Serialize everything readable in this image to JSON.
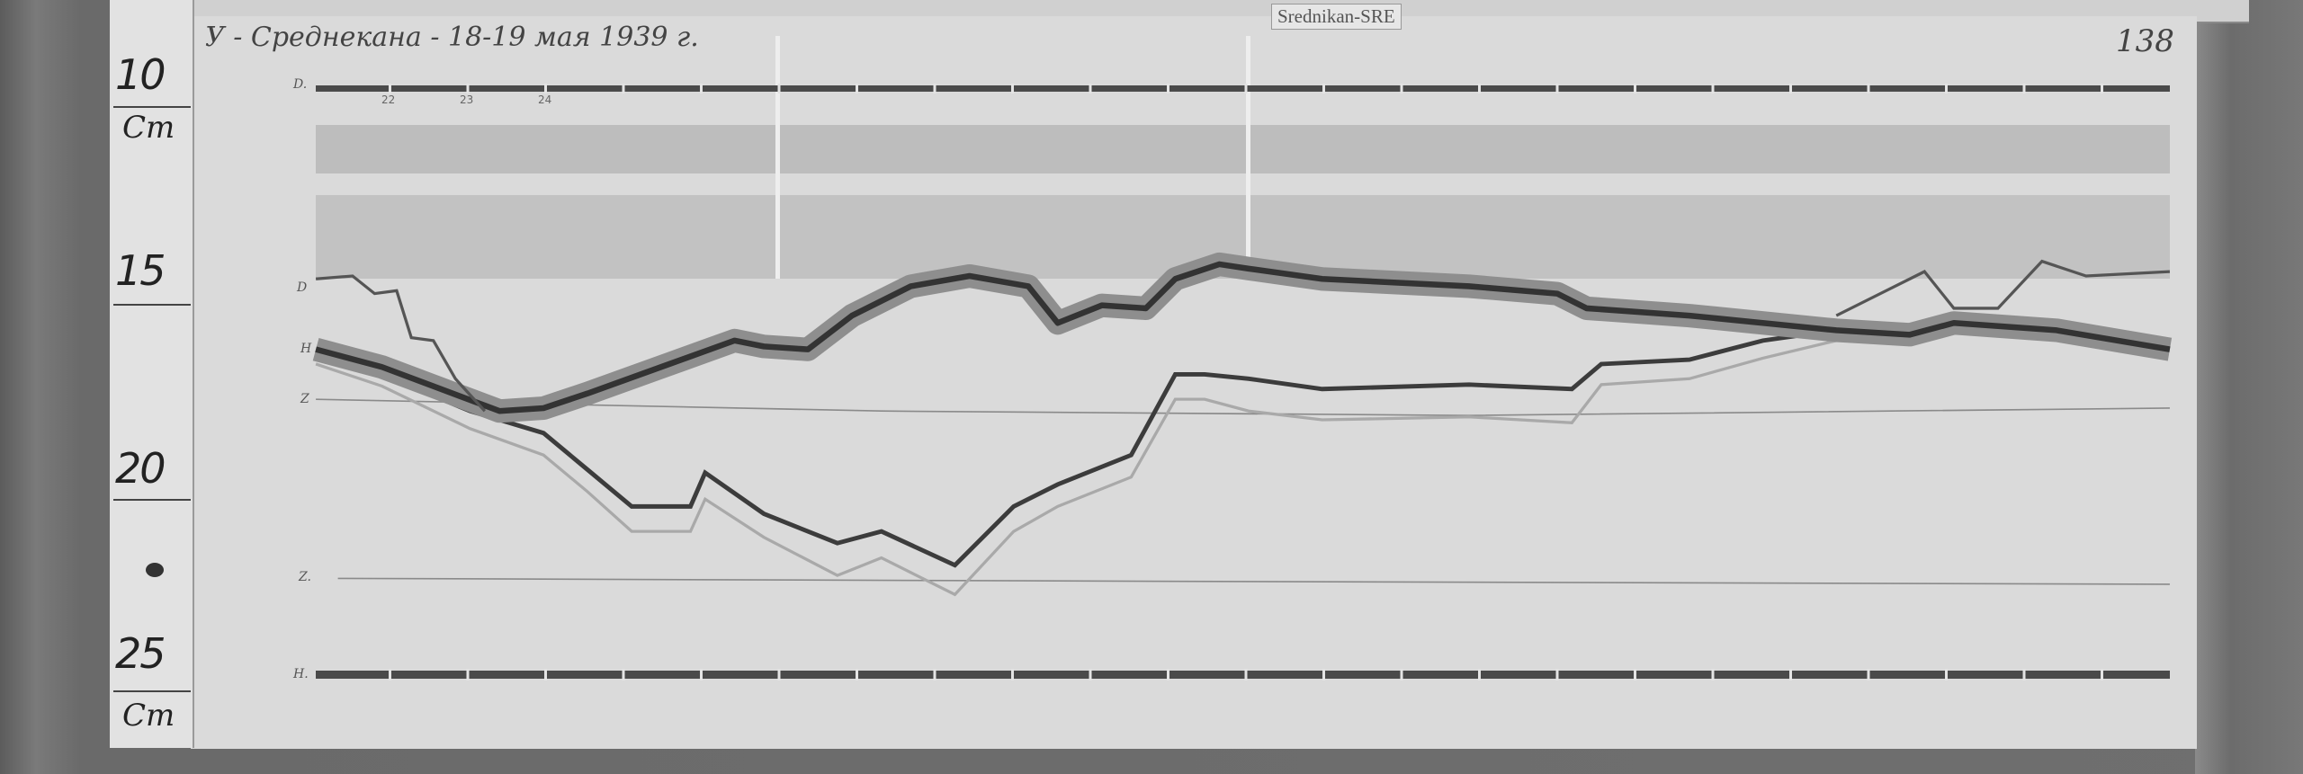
{
  "document": {
    "title": "У - Среднекана - 18-19 мая 1939 г.",
    "station_tag": "Srednikan-SRE",
    "page_number": "138"
  },
  "ruler": {
    "labels": [
      "10",
      "Cm",
      "15",
      "20",
      "25",
      "Cm"
    ]
  },
  "magnetogram": {
    "trace_labels": {
      "baseline_d": "D.",
      "d": "D",
      "h": "H",
      "z": "Z",
      "baseline_z": "Z.",
      "baseline_h": "H."
    },
    "hour_marks": [
      "22",
      "23",
      "24"
    ]
  }
}
